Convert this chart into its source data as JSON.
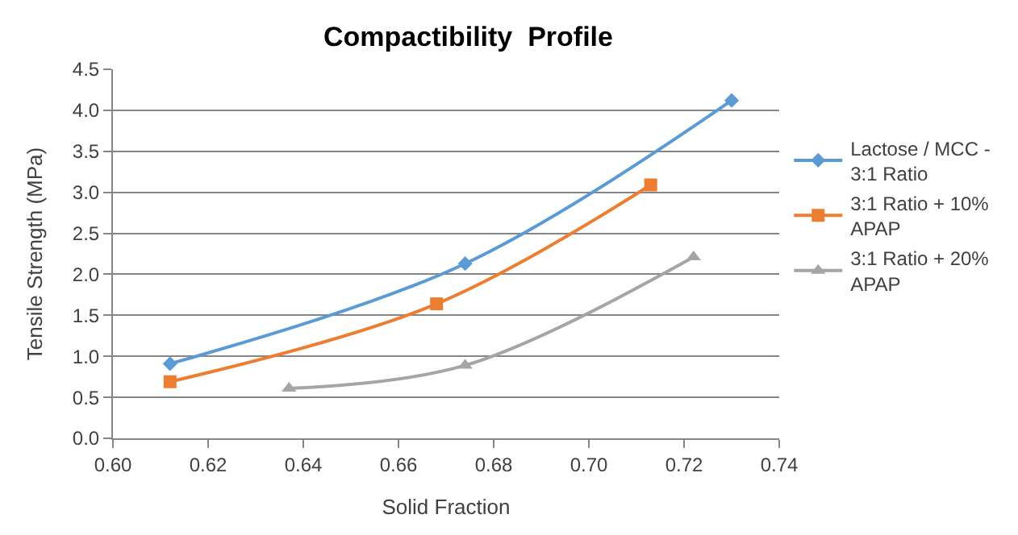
{
  "chart_data": {
    "type": "line",
    "title": "Compactibility  Profile",
    "xlabel": "Solid Fraction",
    "ylabel": "Tensile Strength (MPa)",
    "xlim": [
      0.6,
      0.74
    ],
    "xticks": [
      {
        "value": 0.6,
        "label": "0.60"
      },
      0.62,
      0.64,
      0.66,
      0.68,
      {
        "value": 0.7,
        "label": "0.70"
      },
      0.72,
      0.74
    ],
    "ylim": [
      0,
      4.5
    ],
    "yticks": [
      {
        "value": 0,
        "label": "0.0"
      },
      0.5,
      {
        "value": 1,
        "label": "1.0"
      },
      1.5,
      {
        "value": 2,
        "label": "2.0"
      },
      2.5,
      {
        "value": 3,
        "label": "3.0"
      },
      3.5,
      {
        "value": 4,
        "label": "4.0"
      },
      4.5
    ],
    "grid": "y",
    "legend": "right",
    "series": [
      {
        "name": "Lactose / MCC - 3:1 Ratio",
        "color": "#5b9bd5",
        "marker": "diamond",
        "x": [
          0.612,
          0.674,
          0.73
        ],
        "values": [
          0.91,
          2.13,
          4.12
        ]
      },
      {
        "name": "3:1 Ratio + 10% APAP",
        "color": "#ed7d31",
        "marker": "square",
        "x": [
          0.612,
          0.668,
          0.713
        ],
        "values": [
          0.69,
          1.64,
          3.09
        ]
      },
      {
        "name": "3:1 Ratio + 20% APAP",
        "color": "#a5a5a5",
        "marker": "triangle",
        "x": [
          0.637,
          0.674,
          0.722
        ],
        "values": [
          0.61,
          0.89,
          2.21
        ]
      }
    ]
  }
}
